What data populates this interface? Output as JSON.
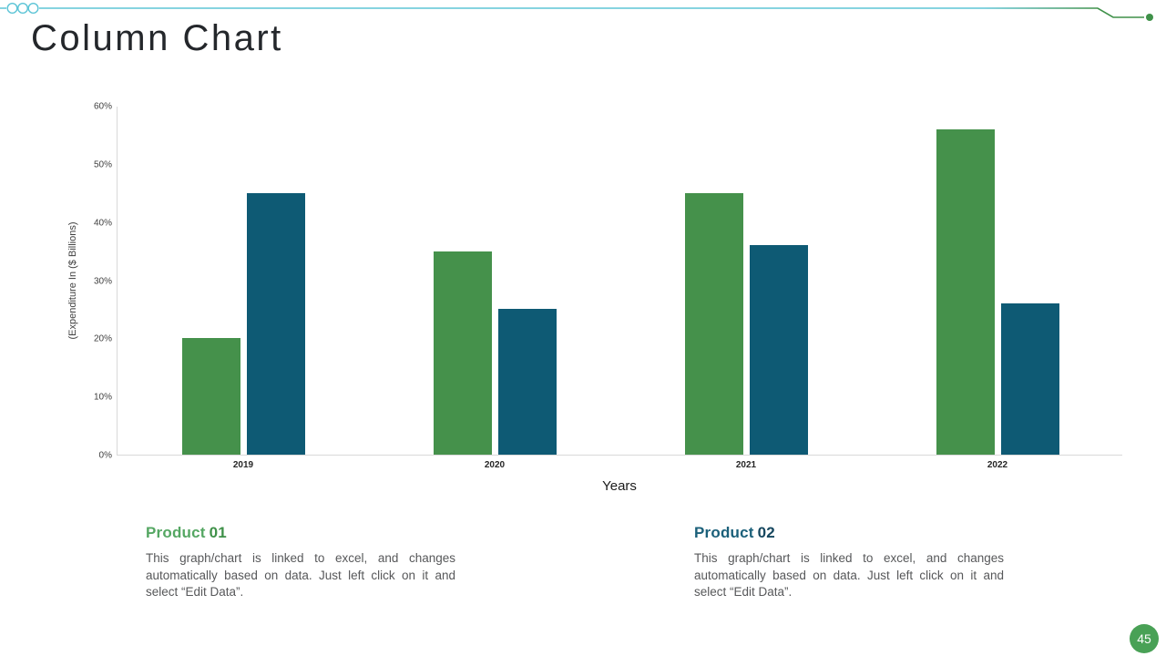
{
  "slide": {
    "title": "Column Chart",
    "page_number": "45"
  },
  "decoration": {
    "line_teal": "#5ec5d6",
    "line_green": "#3f9149",
    "circle_stroke": "#5bc4d6"
  },
  "chart_data": {
    "type": "bar",
    "title": "",
    "categories": [
      "2019",
      "2020",
      "2021",
      "2022"
    ],
    "series": [
      {
        "name": "Product 01",
        "color": "#45914b",
        "values": [
          20,
          35,
          45,
          56
        ]
      },
      {
        "name": "Product 02",
        "color": "#0e5a74",
        "values": [
          45,
          25,
          36,
          26
        ]
      }
    ],
    "xlabel": "Years",
    "ylabel": "(Expenditure In ($ Billions)",
    "ylim": [
      0,
      60
    ],
    "y_ticks": [
      0,
      10,
      20,
      30,
      40,
      50,
      60
    ],
    "y_tick_suffix": "%",
    "grid": false,
    "legend": "none"
  },
  "products": [
    {
      "prefix": "Product",
      "number": "01",
      "prefix_color": "#55a763",
      "number_color": "#3f9149",
      "description": "This graph/chart is linked to excel, and changes automatically based on data. Just left click on it and select “Edit Data”."
    },
    {
      "prefix": "Product",
      "number": "02",
      "prefix_color": "#1b607a",
      "number_color": "#16475f",
      "description": "This graph/chart is linked to excel, and changes automatically based on data. Just left click on it and select “Edit Data”."
    }
  ]
}
